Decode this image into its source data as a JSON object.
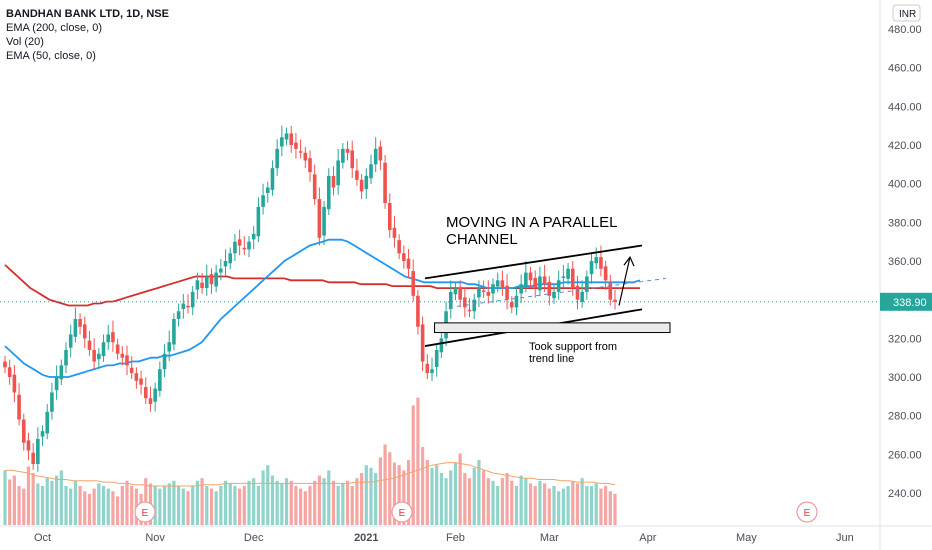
{
  "header": {
    "title": "BANDHAN BANK LTD, 1D, NSE",
    "indicators": [
      "EMA (200, close, 0)",
      "Vol (20)",
      "EMA (50, close, 0)"
    ],
    "currency": "INR"
  },
  "chart_data": {
    "type": "candlestick",
    "currency": "INR",
    "ylim": [
      220,
      485
    ],
    "y_ticks": [
      "480.00",
      "460.00",
      "440.00",
      "420.00",
      "400.00",
      "380.00",
      "360.00",
      "340.00",
      "320.00",
      "300.00",
      "280.00",
      "260.00",
      "240.00"
    ],
    "x_ticks": [
      "Oct",
      "Nov",
      "Dec",
      "2021",
      "Feb",
      "Mar",
      "Apr",
      "May",
      "Jun"
    ],
    "last_price": "338.90",
    "colors": {
      "up": "#26a69a",
      "down": "#ef5350",
      "ema200": "#d32f2f",
      "ema50": "#2196f3",
      "vol_ma": "#f5a36b",
      "last_price_tag": "#26a69a"
    },
    "closes": [
      305,
      300,
      292,
      278,
      266,
      262,
      255,
      268,
      272,
      282,
      292,
      300,
      306,
      314,
      322,
      330,
      326,
      320,
      314,
      308,
      312,
      318,
      322,
      318,
      312,
      310,
      306,
      302,
      298,
      296,
      289,
      286,
      294,
      304,
      312,
      318,
      330,
      334,
      338,
      336,
      344,
      350,
      346,
      352,
      348,
      354,
      356,
      360,
      364,
      370,
      368,
      366,
      370,
      374,
      388,
      394,
      398,
      408,
      418,
      424,
      426,
      420,
      418,
      416,
      412,
      406,
      392,
      372,
      388,
      404,
      398,
      412,
      418,
      416,
      408,
      402,
      396,
      404,
      410,
      418,
      412,
      390,
      376,
      372,
      364,
      360,
      356,
      342,
      326,
      308,
      302,
      304,
      314,
      320,
      334,
      344,
      346,
      340,
      336,
      334,
      340,
      346,
      344,
      342,
      348,
      350,
      346,
      340,
      336,
      342,
      348,
      354,
      350,
      346,
      352,
      348,
      342,
      344,
      350,
      352,
      356,
      346,
      340,
      344,
      352,
      360,
      362,
      356,
      350,
      340,
      338.9
    ],
    "ema50": [
      316,
      313,
      310,
      307,
      305,
      303,
      301,
      300,
      300,
      300,
      300,
      301,
      302,
      303,
      304,
      305,
      306,
      306,
      307,
      307,
      308,
      308,
      309,
      310,
      310,
      311,
      311,
      312,
      313,
      314,
      316,
      318,
      322,
      326,
      330,
      333,
      336,
      339,
      342,
      345,
      348,
      351,
      354,
      357,
      360,
      362,
      364,
      366,
      368,
      369,
      370,
      371,
      371,
      371,
      370,
      368,
      366,
      364,
      362,
      360,
      358,
      356,
      354,
      352,
      351,
      350,
      349,
      349,
      349,
      349,
      349,
      349,
      349,
      348,
      348,
      347,
      346,
      346,
      346,
      346,
      346,
      347,
      347,
      347,
      348,
      348,
      348,
      348,
      349,
      349,
      349,
      349,
      349,
      349,
      349,
      349,
      349,
      349,
      349,
      349,
      350
    ],
    "ema200": [
      358,
      355,
      352,
      349,
      346,
      344,
      342,
      340,
      339,
      338,
      337,
      337,
      337,
      337,
      338,
      338,
      339,
      339,
      340,
      341,
      342,
      343,
      344,
      345,
      346,
      347,
      348,
      349,
      350,
      351,
      352,
      352,
      352,
      352,
      352,
      352,
      351,
      351,
      351,
      351,
      351,
      351,
      351,
      351,
      351,
      350,
      350,
      350,
      350,
      350,
      350,
      349,
      349,
      349,
      349,
      349,
      348,
      348,
      348,
      348,
      348,
      347,
      347,
      347,
      347,
      347,
      347,
      347,
      346,
      346,
      346,
      346,
      346,
      346,
      346,
      346,
      346,
      346,
      346,
      346,
      346,
      346,
      346,
      346,
      346,
      346,
      346,
      346,
      346,
      346,
      346,
      346,
      346,
      346,
      346,
      346,
      346,
      346,
      346,
      346,
      346
    ],
    "volumes": [
      0.42,
      0.35,
      0.38,
      0.3,
      0.28,
      0.45,
      0.4,
      0.32,
      0.3,
      0.36,
      0.34,
      0.38,
      0.42,
      0.3,
      0.28,
      0.34,
      0.3,
      0.26,
      0.24,
      0.28,
      0.32,
      0.3,
      0.28,
      0.26,
      0.22,
      0.3,
      0.34,
      0.3,
      0.28,
      0.24,
      0.36,
      0.32,
      0.3,
      0.28,
      0.3,
      0.32,
      0.34,
      0.3,
      0.28,
      0.26,
      0.3,
      0.34,
      0.36,
      0.3,
      0.28,
      0.26,
      0.3,
      0.34,
      0.32,
      0.3,
      0.28,
      0.3,
      0.34,
      0.36,
      0.3,
      0.42,
      0.46,
      0.38,
      0.34,
      0.32,
      0.36,
      0.34,
      0.3,
      0.28,
      0.26,
      0.3,
      0.34,
      0.38,
      0.36,
      0.42,
      0.34,
      0.3,
      0.32,
      0.34,
      0.3,
      0.36,
      0.4,
      0.46,
      0.44,
      0.4,
      0.52,
      0.62,
      0.56,
      0.48,
      0.46,
      0.42,
      0.5,
      0.92,
      0.98,
      0.6,
      0.5,
      0.44,
      0.46,
      0.4,
      0.36,
      0.42,
      0.48,
      0.55,
      0.4,
      0.36,
      0.44,
      0.5,
      0.42,
      0.36,
      0.34,
      0.3,
      0.36,
      0.4,
      0.34,
      0.3,
      0.38,
      0.36,
      0.32,
      0.3,
      0.34,
      0.32,
      0.28,
      0.3,
      0.26,
      0.28,
      0.3,
      0.34,
      0.32,
      0.36,
      0.3,
      0.3,
      0.32,
      0.28,
      0.3,
      0.26,
      0.24
    ],
    "volume_ma": [
      0.42,
      0.42,
      0.41,
      0.4,
      0.38,
      0.37,
      0.36,
      0.35,
      0.35,
      0.34,
      0.34,
      0.34,
      0.34,
      0.33,
      0.33,
      0.32,
      0.32,
      0.31,
      0.31,
      0.3,
      0.3,
      0.3,
      0.3,
      0.3,
      0.3,
      0.3,
      0.31,
      0.31,
      0.31,
      0.32,
      0.32,
      0.32,
      0.32,
      0.32,
      0.32,
      0.32,
      0.32,
      0.32,
      0.32,
      0.32,
      0.32,
      0.32,
      0.32,
      0.32,
      0.32,
      0.32,
      0.33,
      0.33,
      0.33,
      0.34,
      0.35,
      0.36,
      0.38,
      0.4,
      0.42,
      0.44,
      0.46,
      0.47,
      0.48,
      0.48,
      0.47,
      0.46,
      0.44,
      0.42,
      0.4,
      0.39,
      0.38,
      0.37,
      0.36,
      0.36,
      0.35,
      0.35,
      0.35,
      0.34,
      0.34,
      0.33,
      0.33,
      0.33,
      0.32,
      0.32,
      0.31
    ],
    "channel": {
      "upper": [
        [
          40,
          351
        ],
        [
          131,
          368
        ]
      ],
      "lower": [
        [
          40,
          316
        ],
        [
          131,
          335
        ]
      ],
      "mid": [
        [
          50,
          336
        ],
        [
          141,
          351
        ]
      ]
    },
    "support_zone": [
      [
        44,
        328
      ],
      [
        152,
        323
      ]
    ],
    "arrow": {
      "from": [
        121,
        337
      ],
      "to": [
        128,
        362
      ]
    },
    "earnings_markers": [
      "E",
      "E",
      "E"
    ],
    "annotations": [
      {
        "text": "MOVING IN A PARALLEL"
      },
      {
        "text": "CHANNEL"
      },
      {
        "text": "Took support from"
      },
      {
        "text": "trend line"
      }
    ]
  }
}
